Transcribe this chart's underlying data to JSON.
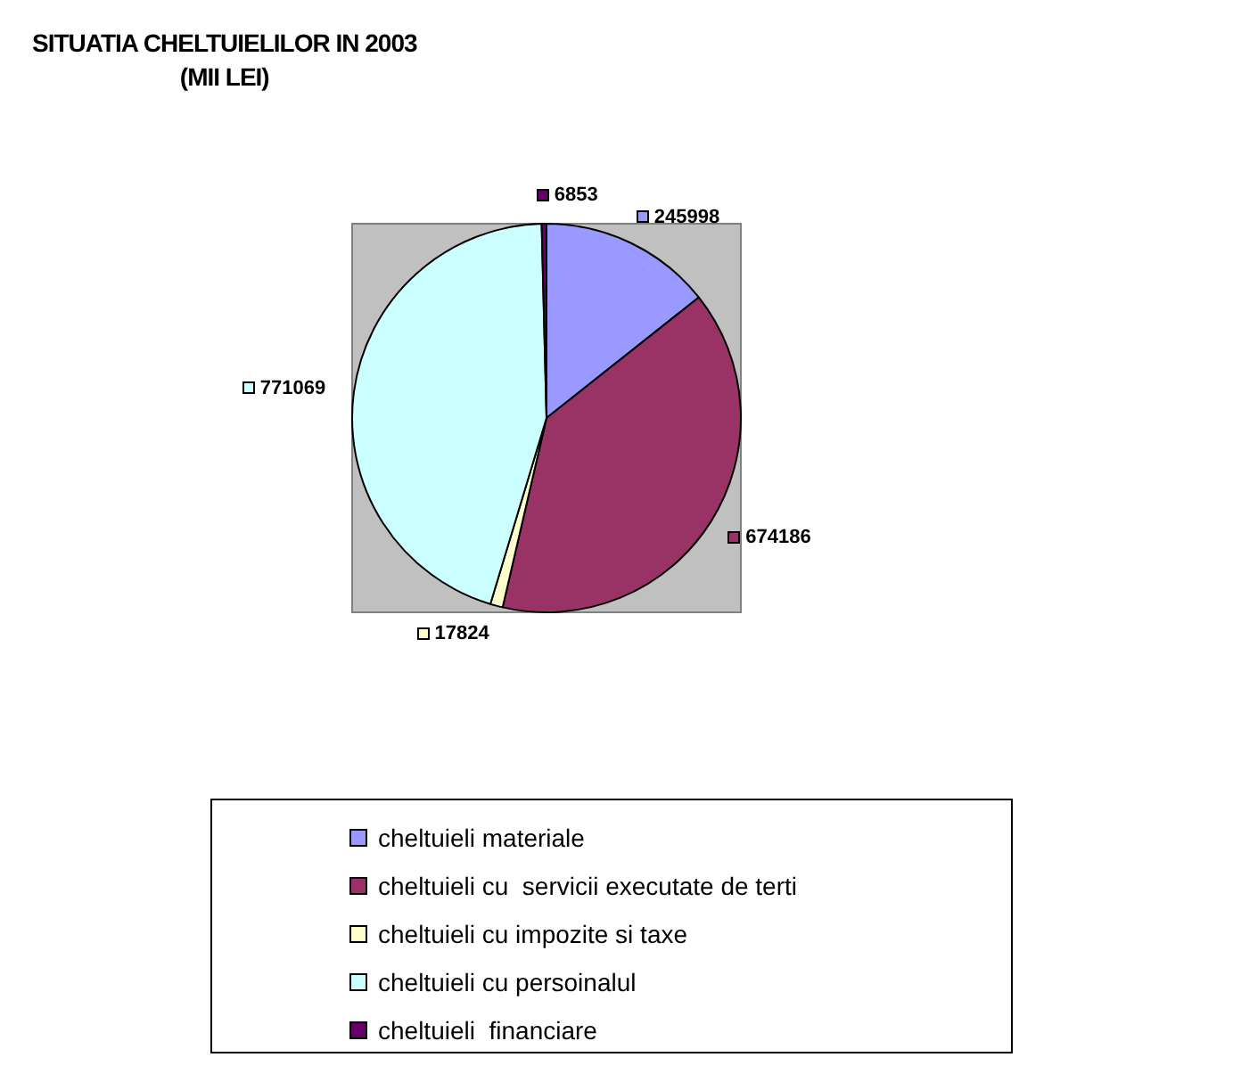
{
  "chart_data": {
    "type": "pie",
    "title": "SITUATIA CHELTUIELILOR IN 2003",
    "subtitle": "(MII LEI)",
    "categories": [
      "cheltuieli materiale",
      "cheltuieli cu  servicii executate de terti",
      "cheltuieli cu impozite si taxe",
      "cheltuieli cu persoinalul",
      "cheltuieli  financiare"
    ],
    "values": [
      245998,
      674186,
      17824,
      771069,
      6853
    ],
    "colors": [
      "#9999ff",
      "#993366",
      "#ffffcc",
      "#ccffff",
      "#660066"
    ],
    "data_labels": true,
    "legend": "bottom"
  }
}
